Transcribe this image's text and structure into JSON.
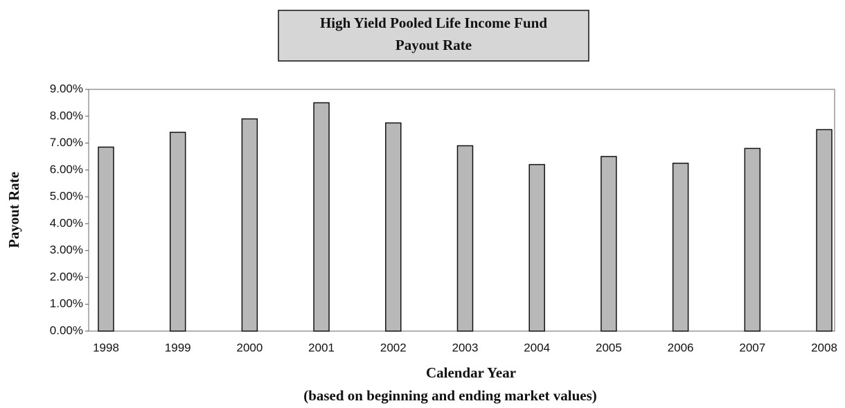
{
  "chart_data": {
    "type": "bar",
    "title": "High Yield Pooled Life Income Fund",
    "subtitle": "Payout Rate",
    "y_label": "Payout Rate",
    "x_label": "Calendar Year",
    "note": "(based on beginning and ending market values)",
    "categories": [
      "1998",
      "1999",
      "2000",
      "2001",
      "2002",
      "2003",
      "2004",
      "2005",
      "2006",
      "2007",
      "2008"
    ],
    "values": [
      6.85,
      7.4,
      7.9,
      8.5,
      7.75,
      6.9,
      6.2,
      6.5,
      6.25,
      6.8,
      7.5
    ],
    "color": "#b8b8b8",
    "ylim": [
      0,
      9
    ],
    "yticks": [
      {
        "value": 0,
        "label": "0.00%"
      },
      {
        "value": 1,
        "label": "1.00%"
      },
      {
        "value": 2,
        "label": "2.00%"
      },
      {
        "value": 3,
        "label": "3.00%"
      },
      {
        "value": 4,
        "label": "4.00%"
      },
      {
        "value": 5,
        "label": "5.00%"
      },
      {
        "value": 6,
        "label": "6.00%"
      },
      {
        "value": 7,
        "label": "7.00%"
      },
      {
        "value": 8,
        "label": "8.00%"
      },
      {
        "value": 9,
        "label": "9.00%"
      }
    ],
    "grid": false
  }
}
